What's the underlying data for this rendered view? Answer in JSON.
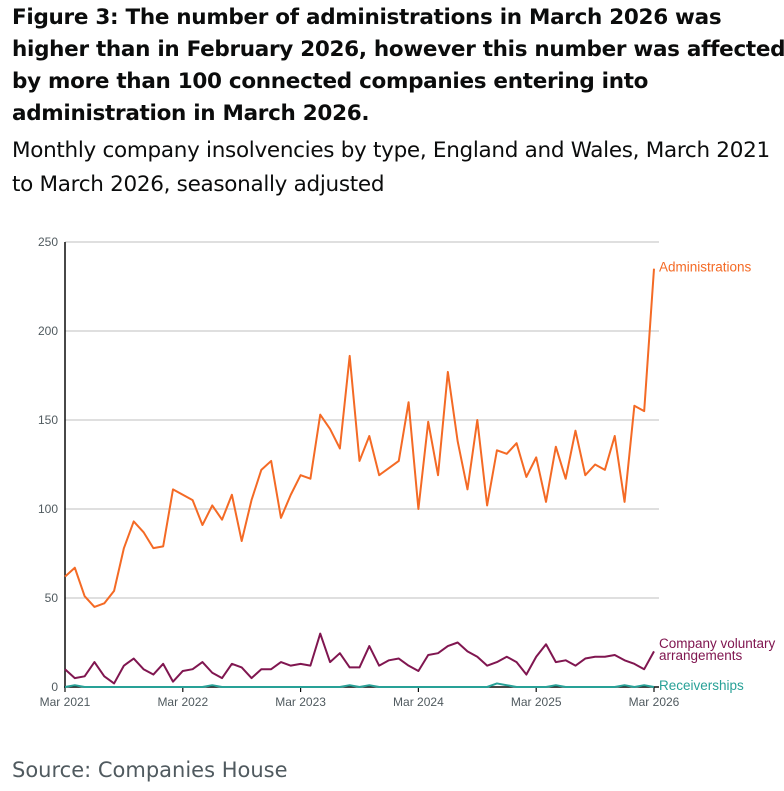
{
  "chart_data": {
    "type": "line",
    "title": "Figure 3: The number of administrations in March 2026 was higher than in February 2026, however this number was affected by more than 100 connected companies entering into administration in March 2026.",
    "subtitle": "Monthly company insolvencies by type, England and Wales, March 2021 to March 2026, seasonally adjusted",
    "source": "Source: Companies House",
    "x_start": "Mar 2021",
    "x_end": "Mar 2026",
    "x_ticks": [
      "Mar 2021",
      "Mar 2022",
      "Mar 2023",
      "Mar 2024",
      "Mar 2025",
      "Mar 2026"
    ],
    "y_ticks": [
      "0",
      "50",
      "100",
      "150",
      "200",
      "250"
    ],
    "ylim": [
      0,
      250
    ],
    "grid": "horizontal",
    "legend": "direct labels at line ends (right)",
    "series": [
      {
        "name": "Administrations",
        "color": "#f46a25",
        "values": [
          62,
          67,
          51,
          45,
          47,
          54,
          78,
          93,
          87,
          78,
          79,
          111,
          108,
          105,
          91,
          102,
          94,
          108,
          82,
          105,
          122,
          127,
          95,
          108,
          119,
          117,
          153,
          145,
          134,
          186,
          127,
          141,
          119,
          123,
          127,
          160,
          100,
          149,
          119,
          177,
          138,
          111,
          150,
          102,
          133,
          131,
          137,
          118,
          129,
          104,
          135,
          117,
          144,
          119,
          125,
          122,
          141,
          104,
          158,
          155,
          235
        ]
      },
      {
        "name": "Company voluntary arrangements",
        "color": "#801650",
        "values": [
          10,
          5,
          6,
          14,
          6,
          2,
          12,
          16,
          10,
          7,
          13,
          3,
          9,
          10,
          14,
          8,
          5,
          13,
          11,
          5,
          10,
          10,
          14,
          12,
          13,
          12,
          30,
          14,
          19,
          11,
          11,
          23,
          12,
          15,
          16,
          12,
          9,
          18,
          19,
          23,
          25,
          20,
          17,
          12,
          14,
          17,
          14,
          7,
          17,
          24,
          14,
          15,
          12,
          16,
          17,
          17,
          18,
          15,
          13,
          10,
          20
        ]
      },
      {
        "name": "Receiverships",
        "color": "#28a197",
        "values": [
          0,
          1,
          0,
          0,
          0,
          0,
          0,
          0,
          0,
          0,
          0,
          0,
          0,
          0,
          0,
          1,
          0,
          0,
          0,
          0,
          0,
          0,
          0,
          0,
          0,
          0,
          0,
          0,
          0,
          1,
          0,
          1,
          0,
          0,
          0,
          0,
          0,
          0,
          0,
          0,
          0,
          0,
          0,
          0,
          2,
          1,
          0,
          0,
          0,
          0,
          1,
          0,
          0,
          0,
          0,
          0,
          0,
          1,
          0,
          1,
          0
        ]
      }
    ],
    "series_labels": {
      "cva_line1": "Company voluntary",
      "cva_line2": "arrangements"
    }
  }
}
